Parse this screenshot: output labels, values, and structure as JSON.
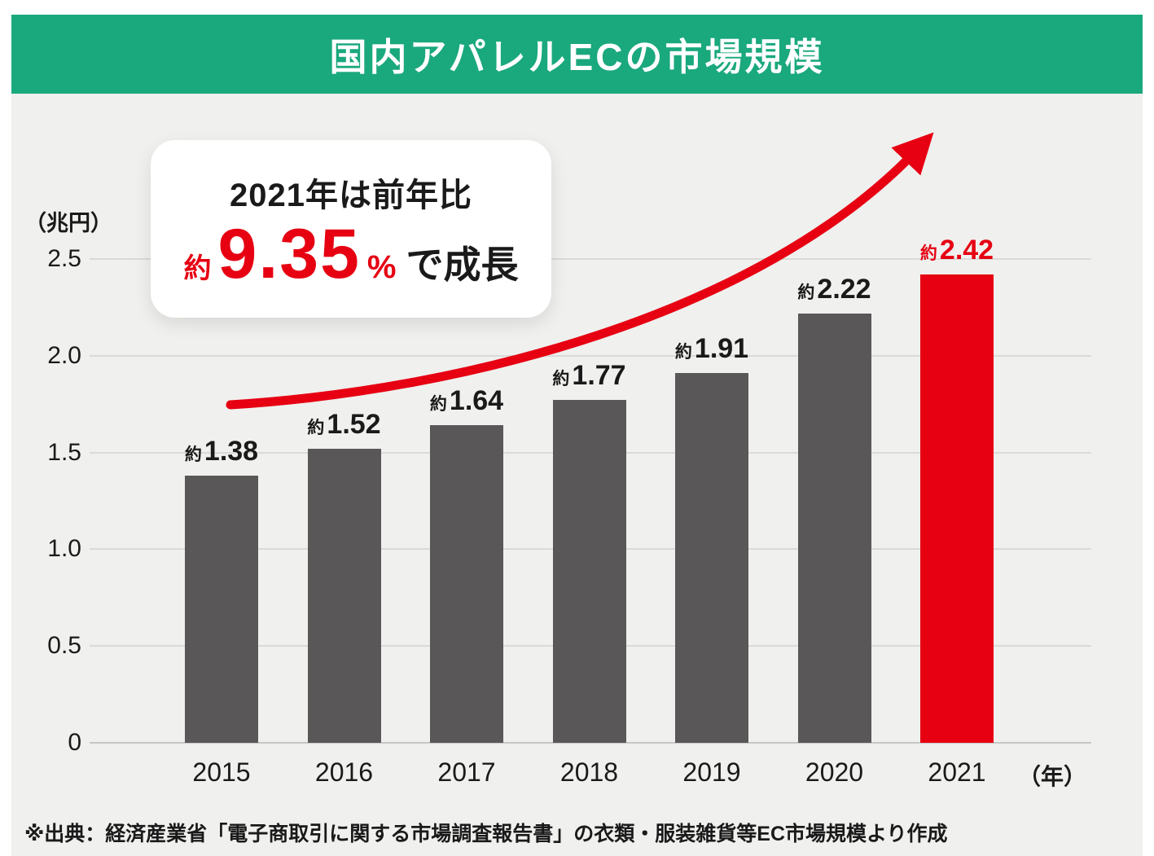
{
  "header": {
    "title": "国内アパレルECの市場規模"
  },
  "callout": {
    "line1": "2021年は前年比",
    "approx": "約",
    "value": "9.35",
    "percent": "%",
    "suffix": "で成長"
  },
  "chart_data": {
    "type": "bar",
    "title": "国内アパレルECの市場規模",
    "ylabel": "（兆円）",
    "xlabel": "（年）",
    "categories": [
      "2015",
      "2016",
      "2017",
      "2018",
      "2019",
      "2020",
      "2021"
    ],
    "values": [
      1.38,
      1.52,
      1.64,
      1.77,
      1.91,
      2.22,
      2.42
    ],
    "value_prefix": "約",
    "yticks": [
      "0",
      "0.5",
      "1.0",
      "1.5",
      "2.0",
      "2.5"
    ],
    "ylim": [
      0,
      2.5
    ],
    "highlight_index": 6,
    "annotation": "2021年は前年比 約9.35%で成長",
    "legend": null,
    "grid": true
  },
  "colors": {
    "header_bg": "#1AA87D",
    "panel_bg": "#F0F0EE",
    "bar": "#595757",
    "highlight": "#E60012",
    "grid": "#DADAD8",
    "axis": "#C6C6C4",
    "text": "#1A1A1A"
  },
  "footer": {
    "source": "※出典：経済産業省「電子商取引に関する市場調査報告書」の衣類・服装雑貨等EC市場規模より作成"
  }
}
